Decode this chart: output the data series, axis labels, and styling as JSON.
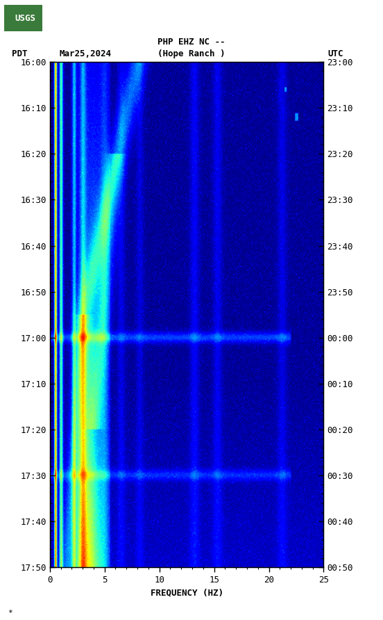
{
  "title_line1": "PHP EHZ NC --",
  "title_line2": "(Hope Ranch )",
  "left_label": "PDT",
  "date_label": "Mar25,2024",
  "right_label": "UTC",
  "xlabel": "FREQUENCY (HZ)",
  "freq_min": 0,
  "freq_max": 25,
  "yticks_pdt": [
    "16:00",
    "16:10",
    "16:20",
    "16:30",
    "16:40",
    "16:50",
    "17:00",
    "17:10",
    "17:20",
    "17:30",
    "17:40",
    "17:50"
  ],
  "yticks_utc": [
    "23:00",
    "23:10",
    "23:20",
    "23:30",
    "23:40",
    "23:50",
    "00:00",
    "00:10",
    "00:20",
    "00:30",
    "00:40",
    "00:50"
  ],
  "xticks": [
    0,
    5,
    10,
    15,
    20,
    25
  ],
  "fig_width": 5.52,
  "fig_height": 8.92,
  "bg_color": "#ffffff",
  "colormap": "jet",
  "seed": 42,
  "n_time": 660,
  "n_freq": 500,
  "vmin": 0.0,
  "vmax": 12.0
}
